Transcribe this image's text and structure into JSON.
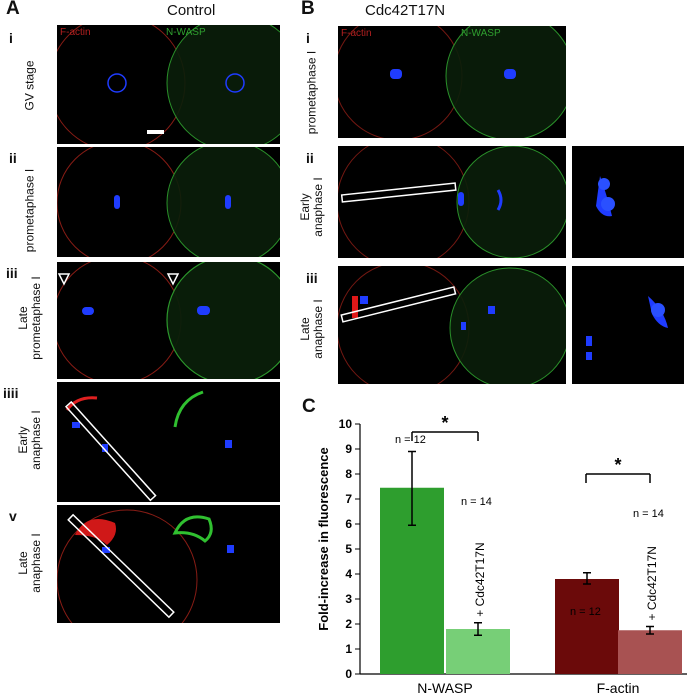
{
  "panels": {
    "A": {
      "letter": "A",
      "title": "Control",
      "channels": [
        "F-actin",
        "N-WASP"
      ],
      "rows": [
        {
          "roman": "i",
          "label_lines": [
            "GV stage"
          ]
        },
        {
          "roman": "ii",
          "label_lines": [
            "prometaphase I"
          ]
        },
        {
          "roman": "iii",
          "label_lines": [
            "Late",
            "prometaphase I"
          ]
        },
        {
          "roman": "iiii",
          "label_lines": [
            "Early",
            "anaphase I"
          ]
        },
        {
          "roman": "v",
          "label_lines": [
            "Late",
            "anaphase I"
          ]
        }
      ]
    },
    "B": {
      "letter": "B",
      "title": "Cdc42T17N",
      "channels": [
        "F-actin",
        "N-WASP"
      ],
      "rows": [
        {
          "roman": "i",
          "label_lines": [
            "prometaphase I"
          ]
        },
        {
          "roman": "ii",
          "label_lines": [
            "Early",
            "anaphase I"
          ]
        },
        {
          "roman": "iii",
          "label_lines": [
            "Late",
            "anaphase I"
          ]
        }
      ]
    },
    "C": {
      "letter": "C"
    }
  },
  "colors": {
    "f_actin": "#c0281e",
    "n_wasp": "#2fa02f",
    "dna": "#1f3cff",
    "nwasp_control": "#2e9e2e",
    "nwasp_mutant": "#77cf77",
    "factin_control": "#6b0a0a",
    "factin_mutant": "#a85252"
  },
  "chart_data": {
    "type": "bar",
    "title": "",
    "xlabel": "",
    "ylabel": "Fold-increase in fluorescence",
    "ylim": [
      0,
      10
    ],
    "yticks": [
      0,
      1,
      2,
      3,
      4,
      5,
      6,
      7,
      8,
      9,
      10
    ],
    "categories": [
      "N-WASP",
      "F-actin"
    ],
    "bars": [
      {
        "group": "N-WASP",
        "value": 7.45,
        "err_low": 5.95,
        "err_high": 8.9,
        "n_label": "n = 12",
        "annotation": "",
        "color_key": "nwasp_control"
      },
      {
        "group": "N-WASP",
        "value": 1.8,
        "err_low": 1.55,
        "err_high": 2.05,
        "n_label": "n = 14",
        "annotation": "+ Cdc42T17N",
        "color_key": "nwasp_mutant"
      },
      {
        "group": "F-actin",
        "value": 3.8,
        "err_low": 3.6,
        "err_high": 4.05,
        "n_label": "n = 12",
        "annotation": "",
        "color_key": "factin_control"
      },
      {
        "group": "F-actin",
        "value": 1.75,
        "err_low": 1.6,
        "err_high": 1.9,
        "n_label": "n = 14",
        "annotation": "+ Cdc42T17N",
        "color_key": "factin_mutant"
      }
    ],
    "significance": [
      "*",
      "*"
    ]
  }
}
